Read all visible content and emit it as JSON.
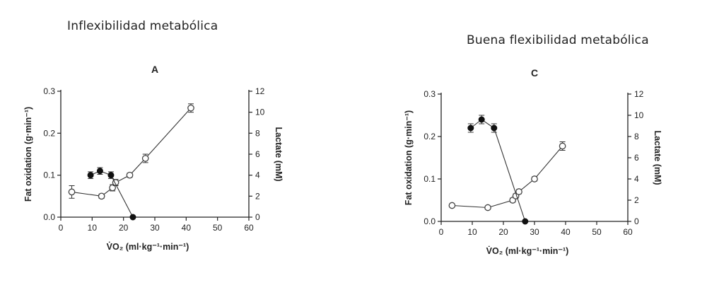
{
  "captions": {
    "left": "Inflexibilidad metabólica",
    "right": "Buena flexibilidad metabólica"
  },
  "chart_data": [
    {
      "type": "scatter",
      "title": "A",
      "xlabel": "V̇O₂ (ml·kg⁻¹·min⁻¹)",
      "ylabel": "Fat oxidation (g·min⁻¹)",
      "y2label": "Lactate (mM)",
      "xlim": [
        0,
        60
      ],
      "ylim": [
        0,
        0.3
      ],
      "y2lim": [
        0,
        12
      ],
      "xticks": [
        "0",
        "10",
        "20",
        "30",
        "40",
        "50",
        "60"
      ],
      "yticks": [
        "0.0",
        "0.1",
        "0.2",
        "0.3"
      ],
      "y2ticks": [
        "0",
        "2",
        "4",
        "6",
        "8",
        "10",
        "12"
      ],
      "grid": false,
      "series": [
        {
          "axis": "left",
          "marker": "filled-circle",
          "points": [
            {
              "x": 9.5,
              "y": 0.1,
              "err": 0.008
            },
            {
              "x": 12.5,
              "y": 0.11,
              "err": 0.008
            },
            {
              "x": 16,
              "y": 0.1,
              "err": 0.008
            },
            {
              "x": 23,
              "y": 0.0,
              "err": 0
            }
          ]
        },
        {
          "axis": "right",
          "marker": "open-circle",
          "points": [
            {
              "x": 3.5,
              "y": 2.4,
              "err": 0.6
            },
            {
              "x": 13,
              "y": 2.0,
              "err": 0.2
            },
            {
              "x": 16.5,
              "y": 2.8,
              "err": 0.3
            },
            {
              "x": 17.5,
              "y": 3.3,
              "err": 0.3
            },
            {
              "x": 22,
              "y": 4.0,
              "err": 0.2
            },
            {
              "x": 27,
              "y": 5.6,
              "err": 0.4
            },
            {
              "x": 41.5,
              "y": 10.4,
              "err": 0.4
            }
          ]
        }
      ]
    },
    {
      "type": "scatter",
      "title": "C",
      "xlabel": "V̇O₂ (ml·kg⁻¹·min⁻¹)",
      "ylabel": "Fat oxidation (g·min⁻¹)",
      "y2label": "Lactate (mM)",
      "xlim": [
        0,
        60
      ],
      "ylim": [
        0,
        0.3
      ],
      "y2lim": [
        0,
        12
      ],
      "xticks": [
        "0",
        "10",
        "20",
        "30",
        "40",
        "50",
        "60"
      ],
      "yticks": [
        "0.0",
        "0.1",
        "0.2",
        "0.3"
      ],
      "y2ticks": [
        "0",
        "2",
        "4",
        "6",
        "8",
        "10",
        "12"
      ],
      "grid": false,
      "series": [
        {
          "axis": "left",
          "marker": "filled-circle",
          "points": [
            {
              "x": 9.5,
              "y": 0.22,
              "err": 0.01
            },
            {
              "x": 13,
              "y": 0.24,
              "err": 0.01
            },
            {
              "x": 17,
              "y": 0.22,
              "err": 0.01
            },
            {
              "x": 27,
              "y": 0.0,
              "err": 0
            }
          ]
        },
        {
          "axis": "right",
          "marker": "open-circle",
          "points": [
            {
              "x": 3.5,
              "y": 1.5,
              "err": 0.1
            },
            {
              "x": 15,
              "y": 1.3,
              "err": 0.1
            },
            {
              "x": 23,
              "y": 2.0,
              "err": 0.2
            },
            {
              "x": 24,
              "y": 2.4,
              "err": 0.2
            },
            {
              "x": 25,
              "y": 2.8,
              "err": 0.2
            },
            {
              "x": 30,
              "y": 4.0,
              "err": 0.2
            },
            {
              "x": 39,
              "y": 7.1,
              "err": 0.4
            }
          ]
        }
      ]
    }
  ]
}
